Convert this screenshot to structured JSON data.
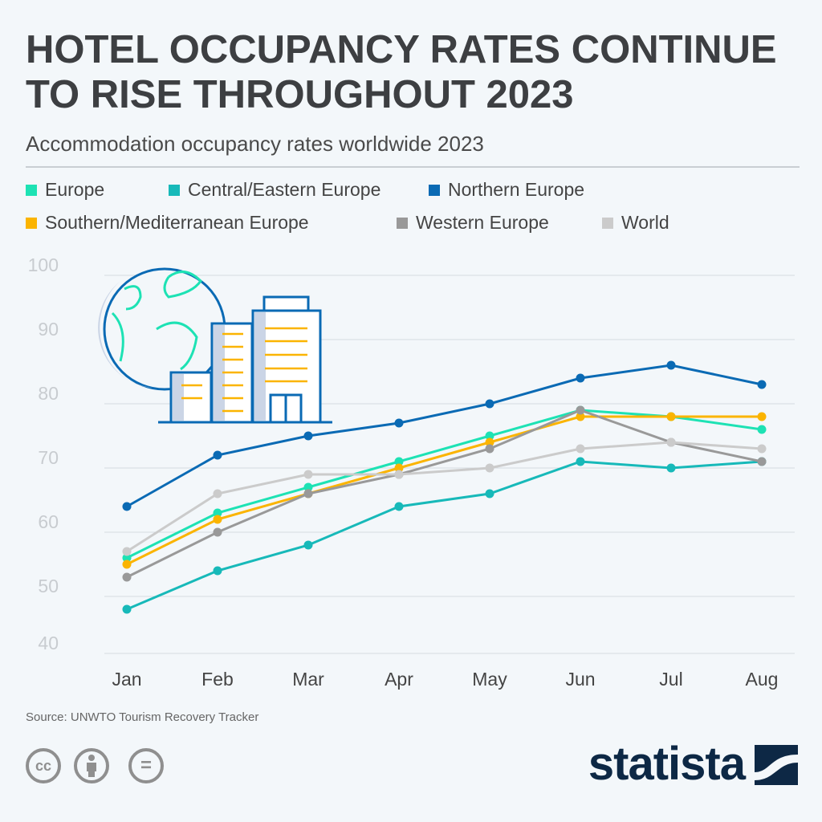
{
  "title": "HOTEL OCCUPANCY RATES CONTINUE TO RISE THROUGHOUT 2023",
  "subtitle": "Accommodation occupancy rates worldwide 2023",
  "source": "Source: UNWTO Tourism Recovery Tracker",
  "brand": "statista",
  "license_icons": [
    "cc-icon",
    "attribution-icon",
    "no-derivatives-icon"
  ],
  "license_text": {
    "cc": "cc",
    "nd": "="
  },
  "chart_data": {
    "type": "line",
    "categories": [
      "Jan",
      "Feb",
      "Mar",
      "Apr",
      "May",
      "Jun",
      "Jul",
      "Aug"
    ],
    "ylim": [
      40,
      100
    ],
    "yticks": [
      "40",
      "50",
      "60",
      "70",
      "80",
      "90",
      "100"
    ],
    "grid": true,
    "legend_position": "top",
    "series": [
      {
        "name": "Europe",
        "color": "#1de2b4",
        "values": [
          56,
          63,
          67,
          71,
          75,
          79,
          78,
          76
        ]
      },
      {
        "name": "Central/Eastern Europe",
        "color": "#17b9b9",
        "values": [
          48,
          54,
          58,
          64,
          66,
          71,
          70,
          71
        ]
      },
      {
        "name": "Northern Europe",
        "color": "#0a6ab4",
        "values": [
          64,
          72,
          75,
          77,
          80,
          84,
          86,
          83
        ]
      },
      {
        "name": "Southern/Mediterranean Europe",
        "color": "#fbb400",
        "values": [
          55,
          62,
          66,
          70,
          74,
          78,
          78,
          78
        ]
      },
      {
        "name": "Western Europe",
        "color": "#999999",
        "values": [
          53,
          60,
          66,
          69,
          73,
          79,
          74,
          71
        ]
      },
      {
        "name": "World",
        "color": "#cbcbcb",
        "values": [
          57,
          66,
          69,
          69,
          70,
          73,
          74,
          73
        ]
      }
    ]
  }
}
